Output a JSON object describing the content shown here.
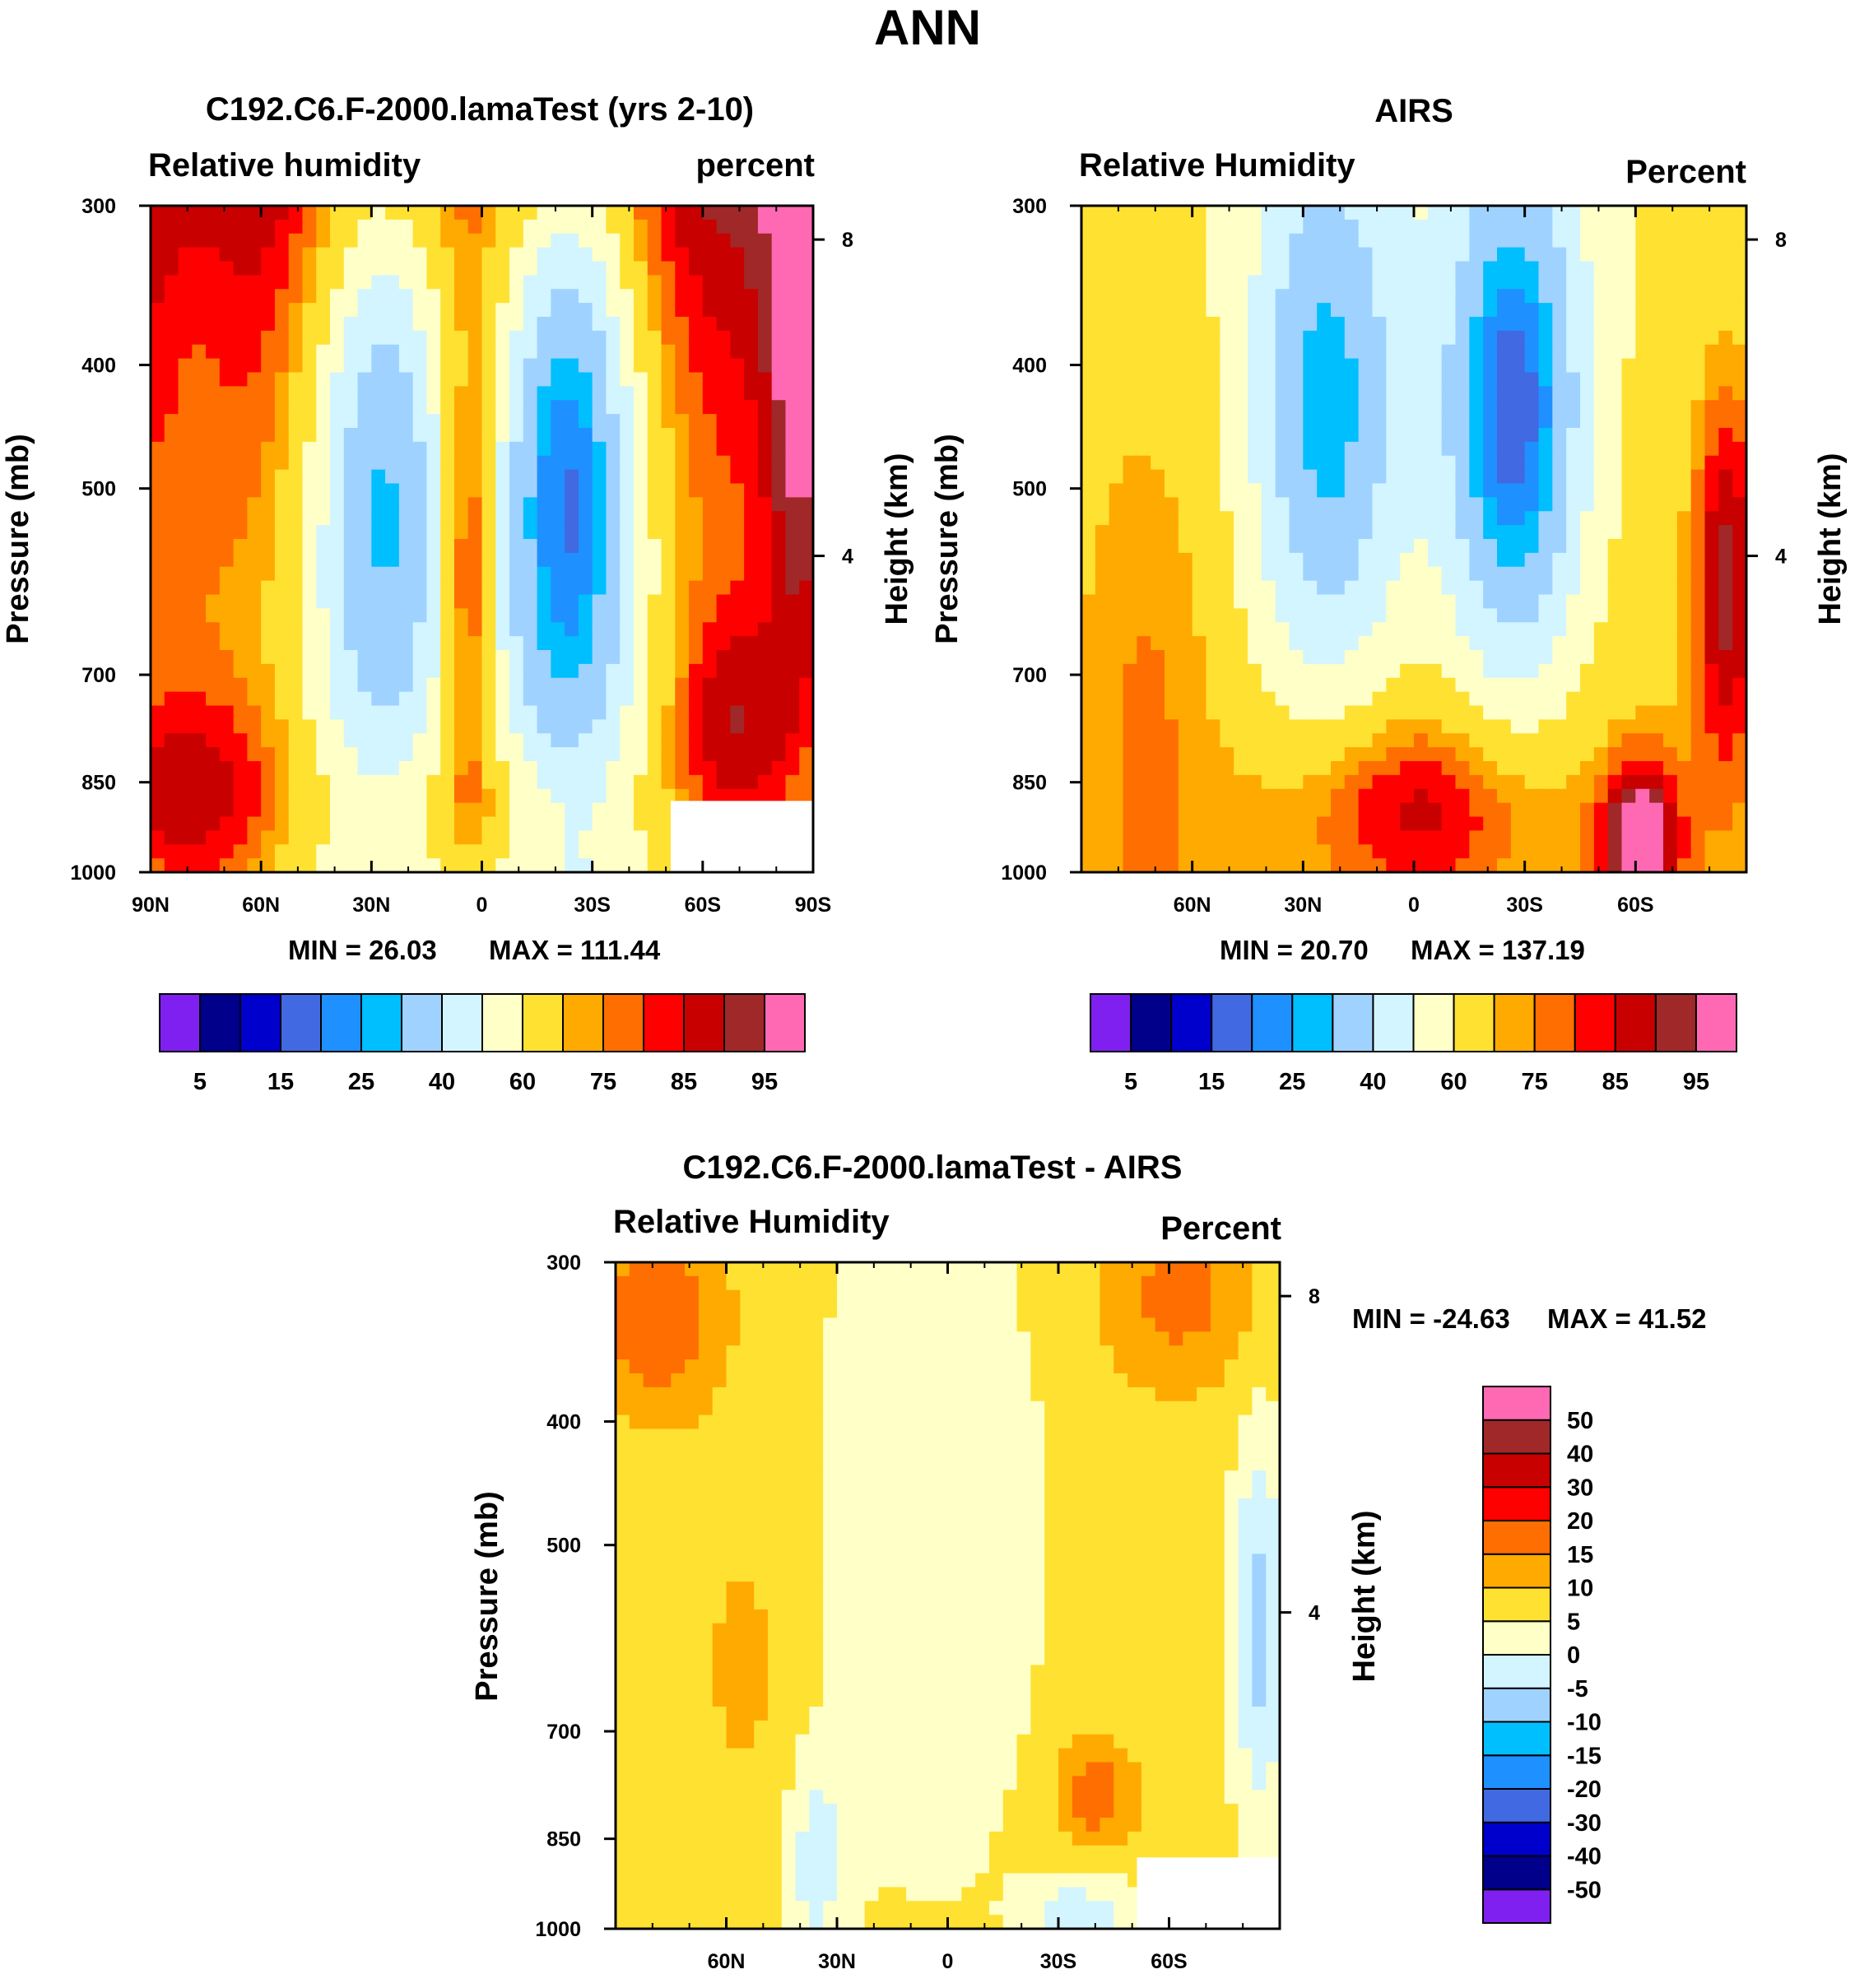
{
  "figure_title": "ANN",
  "chart_data": [
    {
      "type": "heatmap",
      "title": "C192.C6.F-2000.lamaTest (yrs 2-10)",
      "left_string": "Relative humidity",
      "right_string": "percent",
      "ylabel": "Pressure (mb)",
      "ylabel_right": "Height (km)",
      "y_ticks": [
        "300",
        "400",
        "500",
        "700",
        "850",
        "1000"
      ],
      "y_right_ticks": [
        "8",
        "4"
      ],
      "x_ticks": [
        "90N",
        "60N",
        "30N",
        "0",
        "30S",
        "60S",
        "90S"
      ],
      "x_range": [
        "90N",
        "90S"
      ],
      "y_range_mb": [
        1000,
        300
      ],
      "min_label": "MIN =  26.03",
      "max_label": "MAX = 111.44",
      "levels": [
        5,
        10,
        15,
        20,
        25,
        30,
        40,
        50,
        60,
        70,
        75,
        80,
        85,
        90,
        95
      ],
      "colorbar_labels": [
        "5",
        "15",
        "25",
        "40",
        "60",
        "75",
        "85",
        "95"
      ]
    },
    {
      "type": "heatmap",
      "title": "AIRS",
      "left_string": "Relative Humidity",
      "right_string": "Percent",
      "ylabel": "Pressure (mb)",
      "ylabel_right": "Height (km)",
      "y_ticks": [
        "300",
        "400",
        "500",
        "700",
        "850",
        "1000"
      ],
      "y_right_ticks": [
        "8",
        "4"
      ],
      "x_ticks": [
        "60N",
        "30N",
        "0",
        "30S",
        "60S"
      ],
      "y_range_mb": [
        1000,
        300
      ],
      "min_label": "MIN =  20.70",
      "max_label": "MAX = 137.19",
      "levels": [
        5,
        10,
        15,
        20,
        25,
        30,
        40,
        50,
        60,
        70,
        75,
        80,
        85,
        90,
        95
      ],
      "colorbar_labels": [
        "5",
        "15",
        "25",
        "40",
        "60",
        "75",
        "85",
        "95"
      ]
    },
    {
      "type": "heatmap",
      "title": "C192.C6.F-2000.lamaTest - AIRS",
      "left_string": "Relative Humidity",
      "right_string": "Percent",
      "ylabel": "Pressure (mb)",
      "ylabel_right": "Height (km)",
      "y_ticks": [
        "300",
        "400",
        "500",
        "700",
        "850",
        "1000"
      ],
      "y_right_ticks": [
        "8",
        "4"
      ],
      "x_ticks": [
        "60N",
        "30N",
        "0",
        "30S",
        "60S"
      ],
      "y_range_mb": [
        1000,
        300
      ],
      "min_label": "MIN = -24.63",
      "max_label": "MAX =  41.52",
      "levels": [
        -50,
        -40,
        -30,
        -20,
        -15,
        -10,
        -5,
        0,
        5,
        10,
        15,
        20,
        30,
        40,
        50
      ],
      "colorbar_labels": [
        "50",
        "40",
        "30",
        "20",
        "15",
        "10",
        "5",
        "0",
        "-5",
        "-10",
        "-15",
        "-20",
        "-30",
        "-40",
        "-50"
      ]
    }
  ],
  "palette": [
    "#8020f0",
    "#00008b",
    "#0000cd",
    "#4169e1",
    "#1e90ff",
    "#00bfff",
    "#a0d2ff",
    "#d2f5ff",
    "#ffffc8",
    "#ffe132",
    "#ffaa00",
    "#ff6e00",
    "#ff0000",
    "#c80000",
    "#a02828",
    "#ff69b4"
  ]
}
